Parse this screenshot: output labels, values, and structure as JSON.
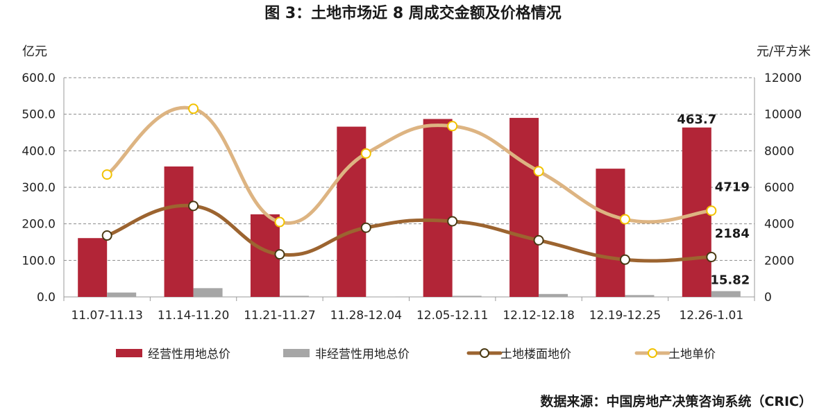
{
  "chart_data": {
    "type": "bar",
    "title": "图 3：土地市场近 8 周成交金额及价格情况",
    "left_unit": "亿元",
    "right_unit": "元/平方米",
    "source": "数据来源：中国房地产决策咨询系统（CRIC）",
    "categories": [
      "11.07-11.13",
      "11.14-11.20",
      "11.21-11.27",
      "11.28-12.04",
      "12.05-12.11",
      "12.12-12.18",
      "12.19-12.25",
      "12.26-1.01"
    ],
    "y_left": {
      "range": [
        0,
        600
      ],
      "ticks": [
        "0.0",
        "100.0",
        "200.0",
        "300.0",
        "400.0",
        "500.0",
        "600.0"
      ]
    },
    "y_right": {
      "range": [
        0,
        12000
      ],
      "ticks": [
        "0",
        "2000",
        "4000",
        "6000",
        "8000",
        "10000",
        "12000"
      ]
    },
    "grid": true,
    "legend_position": "bottom",
    "series": [
      {
        "name": "经营性用地总价",
        "type": "bar",
        "axis": "left",
        "color": "#B22537",
        "values": [
          161,
          357,
          226,
          466,
          487,
          490,
          351,
          463.7
        ]
      },
      {
        "name": "非经营性用地总价",
        "type": "bar",
        "axis": "left",
        "color": "#A6A6A6",
        "values": [
          12,
          24,
          3,
          1,
          3,
          8,
          5,
          15.82
        ]
      },
      {
        "name": "土地楼面地价",
        "type": "line",
        "axis": "right",
        "color": "#9C6430",
        "values": [
          3360,
          4980,
          2330,
          3790,
          4140,
          3100,
          2040,
          2184
        ]
      },
      {
        "name": "土地单价",
        "type": "line",
        "axis": "right",
        "color": "#DDB482",
        "values": [
          6700,
          10300,
          4100,
          7850,
          9350,
          6880,
          4250,
          4719
        ]
      }
    ],
    "data_labels": [
      {
        "series": 0,
        "index": 7,
        "text": "463.7"
      },
      {
        "series": 1,
        "index": 7,
        "text": "15.82"
      },
      {
        "series": 2,
        "index": 7,
        "text": "2184"
      },
      {
        "series": 3,
        "index": 7,
        "text": "4719"
      }
    ]
  }
}
